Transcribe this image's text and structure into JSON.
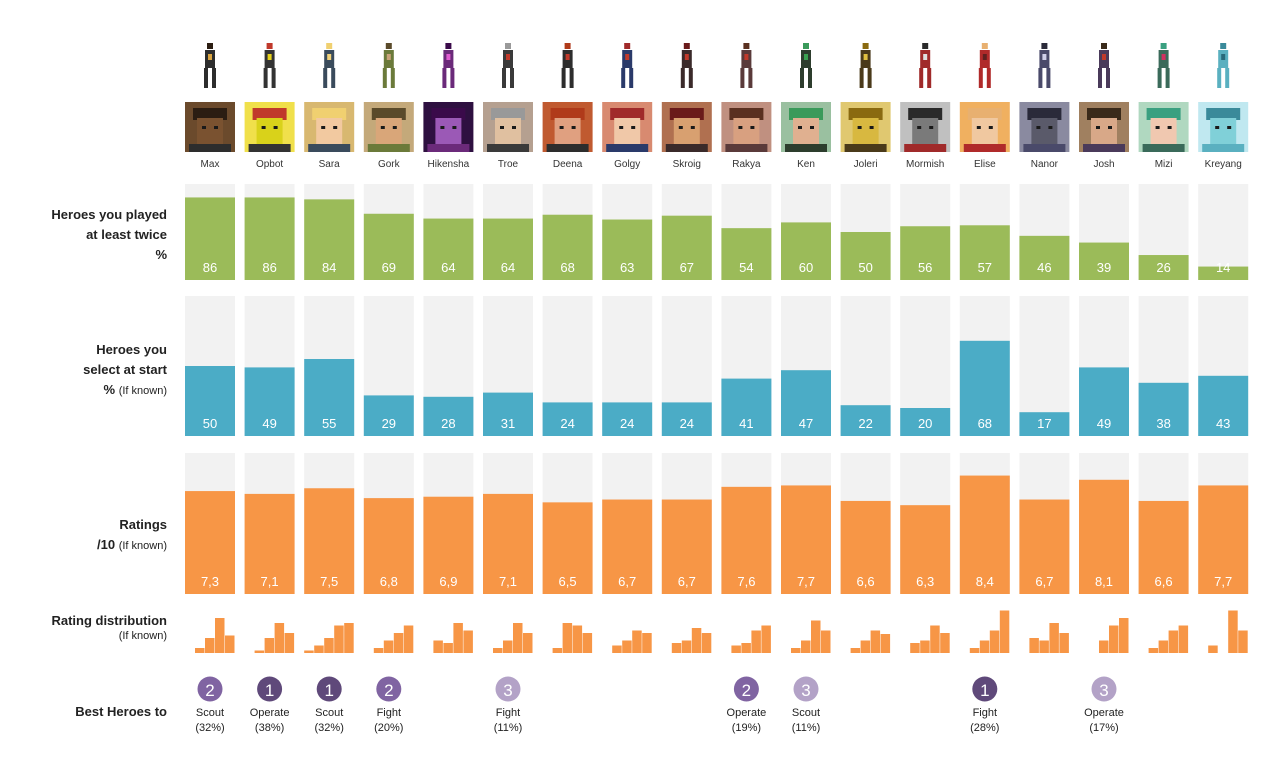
{
  "heroes": [
    "Max",
    "Opbot",
    "Sara",
    "Gork",
    "Hikensha",
    "Troe",
    "Deena",
    "Golgy",
    "Skroig",
    "Rakya",
    "Ken",
    "Joleri",
    "Mormish",
    "Elise",
    "Nanor",
    "Josh",
    "Mizi",
    "Kreyang"
  ],
  "row_labels": {
    "played": {
      "line1": "Heroes you played",
      "line2": "at least twice",
      "line3": "%"
    },
    "select": {
      "line1": "Heroes you",
      "line2": "select at start",
      "line3": "%",
      "note": "(If known)"
    },
    "ratings": {
      "line1": "Ratings",
      "line2": "/10",
      "note": "(If known)"
    },
    "distribution": {
      "line1": "Rating distribution",
      "note": "(If known)"
    },
    "best": {
      "line1": "Best Heroes to"
    }
  },
  "colors": {
    "played": "#9bbb59",
    "select": "#4bacc6",
    "ratings": "#f79646",
    "track": "#f2f2f2",
    "badge_dark": "#5f497a",
    "badge_mid": "#8064a2",
    "badge_light": "#b3a2c7"
  },
  "chart_data": [
    {
      "type": "bar",
      "title": "Heroes you played at least twice %",
      "categories": [
        "Max",
        "Opbot",
        "Sara",
        "Gork",
        "Hikensha",
        "Troe",
        "Deena",
        "Golgy",
        "Skroig",
        "Rakya",
        "Ken",
        "Joleri",
        "Mormish",
        "Elise",
        "Nanor",
        "Josh",
        "Mizi",
        "Kreyang"
      ],
      "values": [
        86,
        86,
        84,
        69,
        64,
        64,
        68,
        63,
        67,
        54,
        60,
        50,
        56,
        57,
        46,
        39,
        26,
        14
      ],
      "labels": [
        "86",
        "86",
        "84",
        "69",
        "64",
        "64",
        "68",
        "63",
        "67",
        "54",
        "60",
        "50",
        "56",
        "57",
        "46",
        "39",
        "26",
        "14"
      ],
      "ylim": [
        0,
        100
      ]
    },
    {
      "type": "bar",
      "title": "Heroes you select at start % (If known)",
      "categories": [
        "Max",
        "Opbot",
        "Sara",
        "Gork",
        "Hikensha",
        "Troe",
        "Deena",
        "Golgy",
        "Skroig",
        "Rakya",
        "Ken",
        "Joleri",
        "Mormish",
        "Elise",
        "Nanor",
        "Josh",
        "Mizi",
        "Kreyang"
      ],
      "values": [
        50,
        49,
        55,
        29,
        28,
        31,
        24,
        24,
        24,
        41,
        47,
        22,
        20,
        68,
        17,
        49,
        38,
        43
      ],
      "labels": [
        "50",
        "49",
        "55",
        "29",
        "28",
        "31",
        "24",
        "24",
        "24",
        "41",
        "47",
        "22",
        "20",
        "68",
        "17",
        "49",
        "38",
        "43"
      ],
      "ylim": [
        0,
        100
      ]
    },
    {
      "type": "bar",
      "title": "Ratings /10 (If known)",
      "categories": [
        "Max",
        "Opbot",
        "Sara",
        "Gork",
        "Hikensha",
        "Troe",
        "Deena",
        "Golgy",
        "Skroig",
        "Rakya",
        "Ken",
        "Joleri",
        "Mormish",
        "Elise",
        "Nanor",
        "Josh",
        "Mizi",
        "Kreyang"
      ],
      "values": [
        7.3,
        7.1,
        7.5,
        6.8,
        6.9,
        7.1,
        6.5,
        6.7,
        6.7,
        7.6,
        7.7,
        6.6,
        6.3,
        8.4,
        6.7,
        8.1,
        6.6,
        7.7
      ],
      "labels": [
        "7,3",
        "7,1",
        "7,5",
        "6,8",
        "6,9",
        "7,1",
        "6,5",
        "6,7",
        "6,7",
        "7,6",
        "7,7",
        "6,6",
        "6,3",
        "8,4",
        "6,7",
        "8,1",
        "6,6",
        "7,7"
      ],
      "ylim": [
        0,
        10
      ]
    },
    {
      "type": "bar",
      "title": "Rating distribution (If known)",
      "categories": [
        "Max",
        "Opbot",
        "Sara",
        "Gork",
        "Hikensha",
        "Troe",
        "Deena",
        "Golgy",
        "Skroig",
        "Rakya",
        "Ken",
        "Joleri",
        "Mormish",
        "Elise",
        "Nanor",
        "Josh",
        "Mizi",
        "Kreyang"
      ],
      "bins": 5,
      "distributions": [
        [
          0,
          10,
          30,
          70,
          35
        ],
        [
          0,
          5,
          30,
          60,
          40
        ],
        [
          5,
          15,
          30,
          55,
          60
        ],
        [
          0,
          10,
          25,
          40,
          55
        ],
        [
          0,
          25,
          20,
          60,
          45
        ],
        [
          0,
          10,
          25,
          60,
          40
        ],
        [
          0,
          10,
          60,
          55,
          40
        ],
        [
          0,
          15,
          25,
          45,
          40
        ],
        [
          0,
          20,
          25,
          50,
          40
        ],
        [
          0,
          15,
          20,
          45,
          55
        ],
        [
          0,
          10,
          25,
          65,
          45
        ],
        [
          0,
          10,
          25,
          45,
          38
        ],
        [
          0,
          20,
          25,
          55,
          40
        ],
        [
          0,
          10,
          25,
          45,
          85
        ],
        [
          0,
          30,
          25,
          60,
          40
        ],
        [
          0,
          0,
          25,
          55,
          70
        ],
        [
          0,
          10,
          25,
          45,
          55
        ],
        [
          0,
          15,
          0,
          85,
          45
        ]
      ]
    }
  ],
  "best_heroes": [
    {
      "hero": "Max",
      "rank": "2",
      "role": "Scout",
      "pct": "(32%)"
    },
    {
      "hero": "Opbot",
      "rank": "1",
      "role": "Operate",
      "pct": "(38%)"
    },
    {
      "hero": "Sara",
      "rank": "1",
      "role": "Scout",
      "pct": "(32%)"
    },
    {
      "hero": "Gork",
      "rank": "2",
      "role": "Fight",
      "pct": "(20%)"
    },
    {
      "hero": "Troe",
      "rank": "3",
      "role": "Fight",
      "pct": "(11%)"
    },
    {
      "hero": "Rakya",
      "rank": "2",
      "role": "Operate",
      "pct": "(19%)"
    },
    {
      "hero": "Ken",
      "rank": "3",
      "role": "Scout",
      "pct": "(11%)"
    },
    {
      "hero": "Elise",
      "rank": "1",
      "role": "Fight",
      "pct": "(28%)"
    },
    {
      "hero": "Josh",
      "rank": "3",
      "role": "Operate",
      "pct": "(17%)"
    }
  ],
  "portraits": [
    {
      "body": "#2d2d2d",
      "accent": "#d9a441",
      "face": "#7a5230",
      "hair": "#2b1d12",
      "bg": "#6b4a2c"
    },
    {
      "body": "#333333",
      "accent": "#e7d21c",
      "face": "#d9d21a",
      "hair": "#c0392b",
      "bg": "#f0e04b"
    },
    {
      "body": "#3a4b5c",
      "accent": "#f2d37a",
      "face": "#f2c9a0",
      "hair": "#f0d070",
      "bg": "#d8b870"
    },
    {
      "body": "#6b7a3a",
      "accent": "#c8a27a",
      "face": "#d9a679",
      "hair": "#5a4a2a",
      "bg": "#c4a97a"
    },
    {
      "body": "#6b2a7a",
      "accent": "#e05ad0",
      "face": "#9b59b6",
      "hair": "#3a0a4a",
      "bg": "#2e1040"
    },
    {
      "body": "#3a3a3a",
      "accent": "#c0392b",
      "face": "#e0c0a0",
      "hair": "#999999",
      "bg": "#b5a090"
    },
    {
      "body": "#2d2d2d",
      "accent": "#c0392b",
      "face": "#e0a080",
      "hair": "#b03a1a",
      "bg": "#c05a30"
    },
    {
      "body": "#2a3a6a",
      "accent": "#c0392b",
      "face": "#f0c8a8",
      "hair": "#a02a2a",
      "bg": "#d88a70"
    },
    {
      "body": "#3a2a2a",
      "accent": "#c0392b",
      "face": "#d8a070",
      "hair": "#6a1a1a",
      "bg": "#b07050"
    },
    {
      "body": "#5a3a3a",
      "accent": "#c0392b",
      "face": "#d8a080",
      "hair": "#5a3020",
      "bg": "#c09080"
    },
    {
      "body": "#2d3d2d",
      "accent": "#3aa050",
      "face": "#e0b090",
      "hair": "#3a9a5a",
      "bg": "#9ac0a0"
    },
    {
      "body": "#4a3a1a",
      "accent": "#e0c040",
      "face": "#d8b840",
      "hair": "#8a6a10",
      "bg": "#e0c870"
    },
    {
      "body": "#a02a2a",
      "accent": "#e0e0e0",
      "face": "#7a7a7a",
      "hair": "#2a2a2a",
      "bg": "#c0c0c0"
    },
    {
      "body": "#b02a2a",
      "accent": "#602020",
      "face": "#f0c8a0",
      "hair": "#e8b070",
      "bg": "#f0b060"
    },
    {
      "body": "#4a4a6a",
      "accent": "#cfcfe8",
      "face": "#5a5a6a",
      "hair": "#2a2a3a",
      "bg": "#8a8aa0"
    },
    {
      "body": "#4a3a5a",
      "accent": "#c0392b",
      "face": "#d8a888",
      "hair": "#3a2a1a",
      "bg": "#a08060"
    },
    {
      "body": "#3a6a5a",
      "accent": "#d03060",
      "face": "#f0c8b0",
      "hair": "#3aa080",
      "bg": "#b0d8c0"
    },
    {
      "body": "#5ab0c0",
      "accent": "#2a6a7a",
      "face": "#80d0d8",
      "hair": "#3a8a9a",
      "bg": "#c0e8f0"
    }
  ]
}
